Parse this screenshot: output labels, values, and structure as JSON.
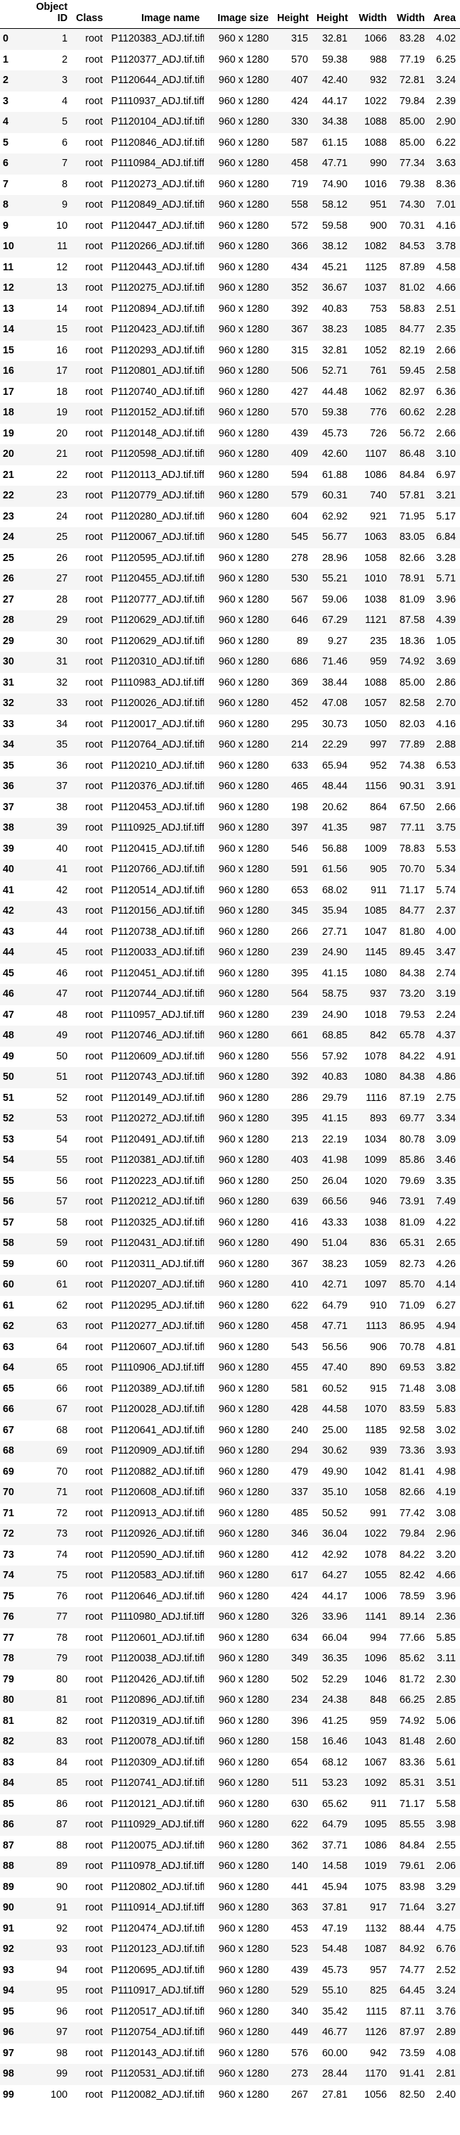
{
  "table": {
    "columns": [
      "",
      "Object ID",
      "Class",
      "Image name",
      "Image size",
      "Height",
      "Height",
      "Width",
      "Width",
      "Area"
    ],
    "rows": [
      [
        "0",
        "1",
        "root",
        "P1120383_ADJ.tif.tiff",
        "960 x 1280",
        "315",
        "32.81",
        "1066",
        "83.28",
        "4.02"
      ],
      [
        "1",
        "2",
        "root",
        "P1120377_ADJ.tif.tiff",
        "960 x 1280",
        "570",
        "59.38",
        "988",
        "77.19",
        "6.25"
      ],
      [
        "2",
        "3",
        "root",
        "P1120644_ADJ.tif.tiff",
        "960 x 1280",
        "407",
        "42.40",
        "932",
        "72.81",
        "3.24"
      ],
      [
        "3",
        "4",
        "root",
        "P1110937_ADJ.tif.tiff",
        "960 x 1280",
        "424",
        "44.17",
        "1022",
        "79.84",
        "2.39"
      ],
      [
        "4",
        "5",
        "root",
        "P1120104_ADJ.tif.tiff",
        "960 x 1280",
        "330",
        "34.38",
        "1088",
        "85.00",
        "2.90"
      ],
      [
        "5",
        "6",
        "root",
        "P1120846_ADJ.tif.tiff",
        "960 x 1280",
        "587",
        "61.15",
        "1088",
        "85.00",
        "6.22"
      ],
      [
        "6",
        "7",
        "root",
        "P1110984_ADJ.tif.tiff",
        "960 x 1280",
        "458",
        "47.71",
        "990",
        "77.34",
        "3.63"
      ],
      [
        "7",
        "8",
        "root",
        "P1120273_ADJ.tif.tiff",
        "960 x 1280",
        "719",
        "74.90",
        "1016",
        "79.38",
        "8.36"
      ],
      [
        "8",
        "9",
        "root",
        "P1120849_ADJ.tif.tiff",
        "960 x 1280",
        "558",
        "58.12",
        "951",
        "74.30",
        "7.01"
      ],
      [
        "9",
        "10",
        "root",
        "P1120447_ADJ.tif.tiff",
        "960 x 1280",
        "572",
        "59.58",
        "900",
        "70.31",
        "4.16"
      ],
      [
        "10",
        "11",
        "root",
        "P1120266_ADJ.tif.tiff",
        "960 x 1280",
        "366",
        "38.12",
        "1082",
        "84.53",
        "3.78"
      ],
      [
        "11",
        "12",
        "root",
        "P1120443_ADJ.tif.tiff",
        "960 x 1280",
        "434",
        "45.21",
        "1125",
        "87.89",
        "4.58"
      ],
      [
        "12",
        "13",
        "root",
        "P1120275_ADJ.tif.tiff",
        "960 x 1280",
        "352",
        "36.67",
        "1037",
        "81.02",
        "4.66"
      ],
      [
        "13",
        "14",
        "root",
        "P1120894_ADJ.tif.tiff",
        "960 x 1280",
        "392",
        "40.83",
        "753",
        "58.83",
        "2.51"
      ],
      [
        "14",
        "15",
        "root",
        "P1120423_ADJ.tif.tiff",
        "960 x 1280",
        "367",
        "38.23",
        "1085",
        "84.77",
        "2.35"
      ],
      [
        "15",
        "16",
        "root",
        "P1120293_ADJ.tif.tiff",
        "960 x 1280",
        "315",
        "32.81",
        "1052",
        "82.19",
        "2.66"
      ],
      [
        "16",
        "17",
        "root",
        "P1120801_ADJ.tif.tiff",
        "960 x 1280",
        "506",
        "52.71",
        "761",
        "59.45",
        "2.58"
      ],
      [
        "17",
        "18",
        "root",
        "P1120740_ADJ.tif.tiff",
        "960 x 1280",
        "427",
        "44.48",
        "1062",
        "82.97",
        "6.36"
      ],
      [
        "18",
        "19",
        "root",
        "P1120152_ADJ.tif.tiff",
        "960 x 1280",
        "570",
        "59.38",
        "776",
        "60.62",
        "2.28"
      ],
      [
        "19",
        "20",
        "root",
        "P1120148_ADJ.tif.tiff",
        "960 x 1280",
        "439",
        "45.73",
        "726",
        "56.72",
        "2.66"
      ],
      [
        "20",
        "21",
        "root",
        "P1120598_ADJ.tif.tiff",
        "960 x 1280",
        "409",
        "42.60",
        "1107",
        "86.48",
        "3.10"
      ],
      [
        "21",
        "22",
        "root",
        "P1120113_ADJ.tif.tiff",
        "960 x 1280",
        "594",
        "61.88",
        "1086",
        "84.84",
        "6.97"
      ],
      [
        "22",
        "23",
        "root",
        "P1120779_ADJ.tif.tiff",
        "960 x 1280",
        "579",
        "60.31",
        "740",
        "57.81",
        "3.21"
      ],
      [
        "23",
        "24",
        "root",
        "P1120280_ADJ.tif.tiff",
        "960 x 1280",
        "604",
        "62.92",
        "921",
        "71.95",
        "5.17"
      ],
      [
        "24",
        "25",
        "root",
        "P1120067_ADJ.tif.tiff",
        "960 x 1280",
        "545",
        "56.77",
        "1063",
        "83.05",
        "6.84"
      ],
      [
        "25",
        "26",
        "root",
        "P1120595_ADJ.tif.tiff",
        "960 x 1280",
        "278",
        "28.96",
        "1058",
        "82.66",
        "3.28"
      ],
      [
        "26",
        "27",
        "root",
        "P1120455_ADJ.tif.tiff",
        "960 x 1280",
        "530",
        "55.21",
        "1010",
        "78.91",
        "5.71"
      ],
      [
        "27",
        "28",
        "root",
        "P1120777_ADJ.tif.tiff",
        "960 x 1280",
        "567",
        "59.06",
        "1038",
        "81.09",
        "3.96"
      ],
      [
        "28",
        "29",
        "root",
        "P1120629_ADJ.tif.tiff",
        "960 x 1280",
        "646",
        "67.29",
        "1121",
        "87.58",
        "4.39"
      ],
      [
        "29",
        "30",
        "root",
        "P1120629_ADJ.tif.tiff",
        "960 x 1280",
        "89",
        "9.27",
        "235",
        "18.36",
        "1.05"
      ],
      [
        "30",
        "31",
        "root",
        "P1120310_ADJ.tif.tiff",
        "960 x 1280",
        "686",
        "71.46",
        "959",
        "74.92",
        "3.69"
      ],
      [
        "31",
        "32",
        "root",
        "P1110983_ADJ.tif.tiff",
        "960 x 1280",
        "369",
        "38.44",
        "1088",
        "85.00",
        "2.86"
      ],
      [
        "32",
        "33",
        "root",
        "P1120026_ADJ.tif.tiff",
        "960 x 1280",
        "452",
        "47.08",
        "1057",
        "82.58",
        "2.70"
      ],
      [
        "33",
        "34",
        "root",
        "P1120017_ADJ.tif.tiff",
        "960 x 1280",
        "295",
        "30.73",
        "1050",
        "82.03",
        "4.16"
      ],
      [
        "34",
        "35",
        "root",
        "P1120764_ADJ.tif.tiff",
        "960 x 1280",
        "214",
        "22.29",
        "997",
        "77.89",
        "2.88"
      ],
      [
        "35",
        "36",
        "root",
        "P1120210_ADJ.tif.tiff",
        "960 x 1280",
        "633",
        "65.94",
        "952",
        "74.38",
        "6.53"
      ],
      [
        "36",
        "37",
        "root",
        "P1120376_ADJ.tif.tiff",
        "960 x 1280",
        "465",
        "48.44",
        "1156",
        "90.31",
        "3.91"
      ],
      [
        "37",
        "38",
        "root",
        "P1120453_ADJ.tif.tiff",
        "960 x 1280",
        "198",
        "20.62",
        "864",
        "67.50",
        "2.66"
      ],
      [
        "38",
        "39",
        "root",
        "P1110925_ADJ.tif.tiff",
        "960 x 1280",
        "397",
        "41.35",
        "987",
        "77.11",
        "3.75"
      ],
      [
        "39",
        "40",
        "root",
        "P1120415_ADJ.tif.tiff",
        "960 x 1280",
        "546",
        "56.88",
        "1009",
        "78.83",
        "5.53"
      ],
      [
        "40",
        "41",
        "root",
        "P1120766_ADJ.tif.tiff",
        "960 x 1280",
        "591",
        "61.56",
        "905",
        "70.70",
        "5.34"
      ],
      [
        "41",
        "42",
        "root",
        "P1120514_ADJ.tif.tiff",
        "960 x 1280",
        "653",
        "68.02",
        "911",
        "71.17",
        "5.74"
      ],
      [
        "42",
        "43",
        "root",
        "P1120156_ADJ.tif.tiff",
        "960 x 1280",
        "345",
        "35.94",
        "1085",
        "84.77",
        "2.37"
      ],
      [
        "43",
        "44",
        "root",
        "P1120738_ADJ.tif.tiff",
        "960 x 1280",
        "266",
        "27.71",
        "1047",
        "81.80",
        "4.00"
      ],
      [
        "44",
        "45",
        "root",
        "P1120033_ADJ.tif.tiff",
        "960 x 1280",
        "239",
        "24.90",
        "1145",
        "89.45",
        "3.47"
      ],
      [
        "45",
        "46",
        "root",
        "P1120451_ADJ.tif.tiff",
        "960 x 1280",
        "395",
        "41.15",
        "1080",
        "84.38",
        "2.74"
      ],
      [
        "46",
        "47",
        "root",
        "P1120744_ADJ.tif.tiff",
        "960 x 1280",
        "564",
        "58.75",
        "937",
        "73.20",
        "3.19"
      ],
      [
        "47",
        "48",
        "root",
        "P1110957_ADJ.tif.tiff",
        "960 x 1280",
        "239",
        "24.90",
        "1018",
        "79.53",
        "2.24"
      ],
      [
        "48",
        "49",
        "root",
        "P1120746_ADJ.tif.tiff",
        "960 x 1280",
        "661",
        "68.85",
        "842",
        "65.78",
        "4.37"
      ],
      [
        "49",
        "50",
        "root",
        "P1120609_ADJ.tif.tiff",
        "960 x 1280",
        "556",
        "57.92",
        "1078",
        "84.22",
        "4.91"
      ],
      [
        "50",
        "51",
        "root",
        "P1120743_ADJ.tif.tiff",
        "960 x 1280",
        "392",
        "40.83",
        "1080",
        "84.38",
        "4.86"
      ],
      [
        "51",
        "52",
        "root",
        "P1120149_ADJ.tif.tiff",
        "960 x 1280",
        "286",
        "29.79",
        "1116",
        "87.19",
        "2.75"
      ],
      [
        "52",
        "53",
        "root",
        "P1120272_ADJ.tif.tiff",
        "960 x 1280",
        "395",
        "41.15",
        "893",
        "69.77",
        "3.34"
      ],
      [
        "53",
        "54",
        "root",
        "P1120491_ADJ.tif.tiff",
        "960 x 1280",
        "213",
        "22.19",
        "1034",
        "80.78",
        "3.09"
      ],
      [
        "54",
        "55",
        "root",
        "P1120381_ADJ.tif.tiff",
        "960 x 1280",
        "403",
        "41.98",
        "1099",
        "85.86",
        "3.46"
      ],
      [
        "55",
        "56",
        "root",
        "P1120223_ADJ.tif.tiff",
        "960 x 1280",
        "250",
        "26.04",
        "1020",
        "79.69",
        "3.35"
      ],
      [
        "56",
        "57",
        "root",
        "P1120212_ADJ.tif.tiff",
        "960 x 1280",
        "639",
        "66.56",
        "946",
        "73.91",
        "7.49"
      ],
      [
        "57",
        "58",
        "root",
        "P1120325_ADJ.tif.tiff",
        "960 x 1280",
        "416",
        "43.33",
        "1038",
        "81.09",
        "4.22"
      ],
      [
        "58",
        "59",
        "root",
        "P1120431_ADJ.tif.tiff",
        "960 x 1280",
        "490",
        "51.04",
        "836",
        "65.31",
        "2.65"
      ],
      [
        "59",
        "60",
        "root",
        "P1120311_ADJ.tif.tiff",
        "960 x 1280",
        "367",
        "38.23",
        "1059",
        "82.73",
        "4.26"
      ],
      [
        "60",
        "61",
        "root",
        "P1120207_ADJ.tif.tiff",
        "960 x 1280",
        "410",
        "42.71",
        "1097",
        "85.70",
        "4.14"
      ],
      [
        "61",
        "62",
        "root",
        "P1120295_ADJ.tif.tiff",
        "960 x 1280",
        "622",
        "64.79",
        "910",
        "71.09",
        "6.27"
      ],
      [
        "62",
        "63",
        "root",
        "P1120277_ADJ.tif.tiff",
        "960 x 1280",
        "458",
        "47.71",
        "1113",
        "86.95",
        "4.94"
      ],
      [
        "63",
        "64",
        "root",
        "P1120607_ADJ.tif.tiff",
        "960 x 1280",
        "543",
        "56.56",
        "906",
        "70.78",
        "4.81"
      ],
      [
        "64",
        "65",
        "root",
        "P1110906_ADJ.tif.tiff",
        "960 x 1280",
        "455",
        "47.40",
        "890",
        "69.53",
        "3.82"
      ],
      [
        "65",
        "66",
        "root",
        "P1120389_ADJ.tif.tiff",
        "960 x 1280",
        "581",
        "60.52",
        "915",
        "71.48",
        "3.08"
      ],
      [
        "66",
        "67",
        "root",
        "P1120028_ADJ.tif.tiff",
        "960 x 1280",
        "428",
        "44.58",
        "1070",
        "83.59",
        "5.83"
      ],
      [
        "67",
        "68",
        "root",
        "P1120641_ADJ.tif.tiff",
        "960 x 1280",
        "240",
        "25.00",
        "1185",
        "92.58",
        "3.02"
      ],
      [
        "68",
        "69",
        "root",
        "P1120909_ADJ.tif.tiff",
        "960 x 1280",
        "294",
        "30.62",
        "939",
        "73.36",
        "3.93"
      ],
      [
        "69",
        "70",
        "root",
        "P1120882_ADJ.tif.tiff",
        "960 x 1280",
        "479",
        "49.90",
        "1042",
        "81.41",
        "4.98"
      ],
      [
        "70",
        "71",
        "root",
        "P1120608_ADJ.tif.tiff",
        "960 x 1280",
        "337",
        "35.10",
        "1058",
        "82.66",
        "4.19"
      ],
      [
        "71",
        "72",
        "root",
        "P1120913_ADJ.tif.tiff",
        "960 x 1280",
        "485",
        "50.52",
        "991",
        "77.42",
        "3.08"
      ],
      [
        "72",
        "73",
        "root",
        "P1120926_ADJ.tif.tiff",
        "960 x 1280",
        "346",
        "36.04",
        "1022",
        "79.84",
        "2.96"
      ],
      [
        "73",
        "74",
        "root",
        "P1120590_ADJ.tif.tiff",
        "960 x 1280",
        "412",
        "42.92",
        "1078",
        "84.22",
        "3.20"
      ],
      [
        "74",
        "75",
        "root",
        "P1120583_ADJ.tif.tiff",
        "960 x 1280",
        "617",
        "64.27",
        "1055",
        "82.42",
        "4.66"
      ],
      [
        "75",
        "76",
        "root",
        "P1120646_ADJ.tif.tiff",
        "960 x 1280",
        "424",
        "44.17",
        "1006",
        "78.59",
        "3.96"
      ],
      [
        "76",
        "77",
        "root",
        "P1110980_ADJ.tif.tiff",
        "960 x 1280",
        "326",
        "33.96",
        "1141",
        "89.14",
        "2.36"
      ],
      [
        "77",
        "78",
        "root",
        "P1120601_ADJ.tif.tiff",
        "960 x 1280",
        "634",
        "66.04",
        "994",
        "77.66",
        "5.85"
      ],
      [
        "78",
        "79",
        "root",
        "P1120038_ADJ.tif.tiff",
        "960 x 1280",
        "349",
        "36.35",
        "1096",
        "85.62",
        "3.11"
      ],
      [
        "79",
        "80",
        "root",
        "P1120426_ADJ.tif.tiff",
        "960 x 1280",
        "502",
        "52.29",
        "1046",
        "81.72",
        "2.30"
      ],
      [
        "80",
        "81",
        "root",
        "P1120896_ADJ.tif.tiff",
        "960 x 1280",
        "234",
        "24.38",
        "848",
        "66.25",
        "2.85"
      ],
      [
        "81",
        "82",
        "root",
        "P1120319_ADJ.tif.tiff",
        "960 x 1280",
        "396",
        "41.25",
        "959",
        "74.92",
        "5.06"
      ],
      [
        "82",
        "83",
        "root",
        "P1120078_ADJ.tif.tiff",
        "960 x 1280",
        "158",
        "16.46",
        "1043",
        "81.48",
        "2.60"
      ],
      [
        "83",
        "84",
        "root",
        "P1120309_ADJ.tif.tiff",
        "960 x 1280",
        "654",
        "68.12",
        "1067",
        "83.36",
        "5.61"
      ],
      [
        "84",
        "85",
        "root",
        "P1120741_ADJ.tif.tiff",
        "960 x 1280",
        "511",
        "53.23",
        "1092",
        "85.31",
        "3.51"
      ],
      [
        "85",
        "86",
        "root",
        "P1120121_ADJ.tif.tiff",
        "960 x 1280",
        "630",
        "65.62",
        "911",
        "71.17",
        "5.58"
      ],
      [
        "86",
        "87",
        "root",
        "P1110929_ADJ.tif.tiff",
        "960 x 1280",
        "622",
        "64.79",
        "1095",
        "85.55",
        "3.98"
      ],
      [
        "87",
        "88",
        "root",
        "P1120075_ADJ.tif.tiff",
        "960 x 1280",
        "362",
        "37.71",
        "1086",
        "84.84",
        "2.55"
      ],
      [
        "88",
        "89",
        "root",
        "P1110978_ADJ.tif.tiff",
        "960 x 1280",
        "140",
        "14.58",
        "1019",
        "79.61",
        "2.06"
      ],
      [
        "89",
        "90",
        "root",
        "P1120802_ADJ.tif.tiff",
        "960 x 1280",
        "441",
        "45.94",
        "1075",
        "83.98",
        "3.29"
      ],
      [
        "90",
        "91",
        "root",
        "P1110914_ADJ.tif.tiff",
        "960 x 1280",
        "363",
        "37.81",
        "917",
        "71.64",
        "3.27"
      ],
      [
        "91",
        "92",
        "root",
        "P1120474_ADJ.tif.tiff",
        "960 x 1280",
        "453",
        "47.19",
        "1132",
        "88.44",
        "4.75"
      ],
      [
        "92",
        "93",
        "root",
        "P1120123_ADJ.tif.tiff",
        "960 x 1280",
        "523",
        "54.48",
        "1087",
        "84.92",
        "6.76"
      ],
      [
        "93",
        "94",
        "root",
        "P1120695_ADJ.tif.tiff",
        "960 x 1280",
        "439",
        "45.73",
        "957",
        "74.77",
        "2.52"
      ],
      [
        "94",
        "95",
        "root",
        "P1110917_ADJ.tif.tiff",
        "960 x 1280",
        "529",
        "55.10",
        "825",
        "64.45",
        "3.24"
      ],
      [
        "95",
        "96",
        "root",
        "P1120517_ADJ.tif.tiff",
        "960 x 1280",
        "340",
        "35.42",
        "1115",
        "87.11",
        "3.76"
      ],
      [
        "96",
        "97",
        "root",
        "P1120754_ADJ.tif.tiff",
        "960 x 1280",
        "449",
        "46.77",
        "1126",
        "87.97",
        "2.89"
      ],
      [
        "97",
        "98",
        "root",
        "P1120143_ADJ.tif.tiff",
        "960 x 1280",
        "576",
        "60.00",
        "942",
        "73.59",
        "4.08"
      ],
      [
        "98",
        "99",
        "root",
        "P1120531_ADJ.tif.tiff",
        "960 x 1280",
        "273",
        "28.44",
        "1170",
        "91.41",
        "2.81"
      ],
      [
        "99",
        "100",
        "root",
        "P1120082_ADJ.tif.tiff",
        "960 x 1280",
        "267",
        "27.81",
        "1056",
        "82.50",
        "2.40"
      ]
    ]
  }
}
